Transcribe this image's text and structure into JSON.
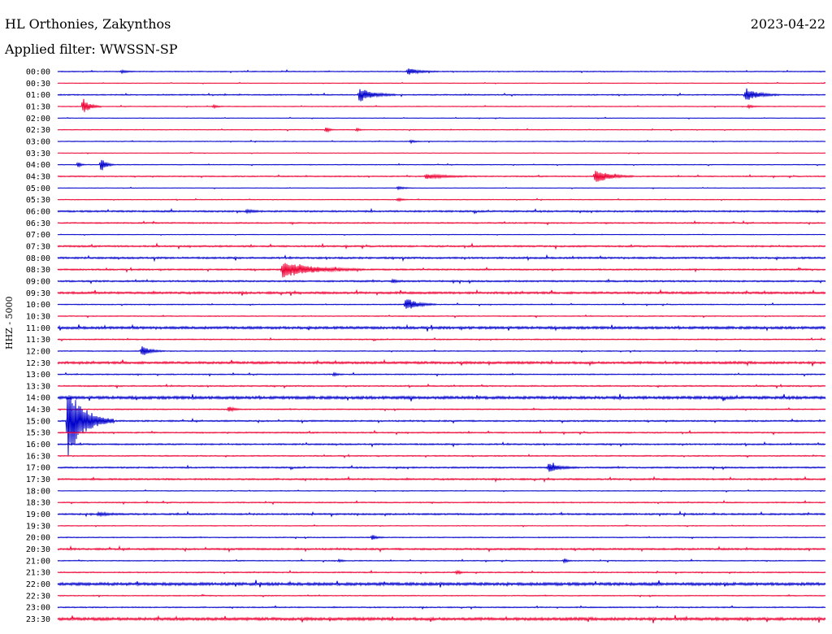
{
  "header": {
    "station": "HL Orthonies, Zakynthos",
    "date": "2023-04-22",
    "filter": "Applied filter: WWSSN-SP",
    "channel": "HHZ - 5000"
  },
  "chart_data": {
    "type": "line",
    "title": "HL Orthonies, Zakynthos",
    "subtitle": "Applied filter: WWSSN-SP",
    "ylabel": "HHZ - 5000",
    "xlabel": "",
    "colors": {
      "even": "#0000cc",
      "odd": "#ee0033"
    },
    "rows": [
      "00:00",
      "00:30",
      "01:00",
      "01:30",
      "02:00",
      "02:30",
      "03:00",
      "03:30",
      "04:00",
      "04:30",
      "05:00",
      "05:30",
      "06:00",
      "06:30",
      "07:00",
      "07:30",
      "08:00",
      "08:30",
      "09:00",
      "09:30",
      "10:00",
      "10:30",
      "11:00",
      "11:30",
      "12:00",
      "12:30",
      "13:00",
      "13:30",
      "14:00",
      "14:30",
      "15:00",
      "15:30",
      "16:00",
      "16:30",
      "17:00",
      "17:30",
      "18:00",
      "18:30",
      "19:00",
      "19:30",
      "20:00",
      "20:30",
      "21:00",
      "21:30",
      "22:00",
      "22:30",
      "23:00",
      "23:30"
    ],
    "row_minutes": 30,
    "noise": [
      0.5,
      0.3,
      0.6,
      0.4,
      0.3,
      0.4,
      0.4,
      0.3,
      0.4,
      0.6,
      0.3,
      0.4,
      0.9,
      0.7,
      0.3,
      0.9,
      1.0,
      0.8,
      0.9,
      1.2,
      0.5,
      0.5,
      1.4,
      0.6,
      0.5,
      1.3,
      0.6,
      0.7,
      1.6,
      0.6,
      0.8,
      0.7,
      0.8,
      0.6,
      0.8,
      0.9,
      0.4,
      0.6,
      0.9,
      0.4,
      0.5,
      1.0,
      0.5,
      0.6,
      1.6,
      0.5,
      0.6,
      1.6
    ],
    "events": [
      {
        "row": 0,
        "minute": 13.7,
        "amp": 4,
        "dur": 1.2
      },
      {
        "row": 0,
        "minute": 2.5,
        "amp": 2,
        "dur": 0.6
      },
      {
        "row": 2,
        "minute": 11.8,
        "amp": 9,
        "dur": 1.4
      },
      {
        "row": 2,
        "minute": 26.9,
        "amp": 8,
        "dur": 1.3
      },
      {
        "row": 3,
        "minute": 1.0,
        "amp": 10,
        "dur": 0.7
      },
      {
        "row": 3,
        "minute": 6.1,
        "amp": 2,
        "dur": 0.4
      },
      {
        "row": 3,
        "minute": 27.0,
        "amp": 2,
        "dur": 0.5
      },
      {
        "row": 5,
        "minute": 10.5,
        "amp": 4,
        "dur": 0.3
      },
      {
        "row": 5,
        "minute": 11.7,
        "amp": 2,
        "dur": 0.3
      },
      {
        "row": 6,
        "minute": 13.8,
        "amp": 2,
        "dur": 0.4
      },
      {
        "row": 8,
        "minute": 0.8,
        "amp": 3,
        "dur": 0.3
      },
      {
        "row": 8,
        "minute": 1.7,
        "amp": 10,
        "dur": 0.5
      },
      {
        "row": 9,
        "minute": 14.4,
        "amp": 3,
        "dur": 2.0
      },
      {
        "row": 9,
        "minute": 21.0,
        "amp": 9,
        "dur": 1.5
      },
      {
        "row": 10,
        "minute": 13.3,
        "amp": 2,
        "dur": 0.7
      },
      {
        "row": 11,
        "minute": 13.3,
        "amp": 2,
        "dur": 0.5
      },
      {
        "row": 12,
        "minute": 7.4,
        "amp": 2,
        "dur": 0.6
      },
      {
        "row": 17,
        "minute": 8.8,
        "amp": 10,
        "dur": 3.2
      },
      {
        "row": 18,
        "minute": 13.1,
        "amp": 2,
        "dur": 0.5
      },
      {
        "row": 20,
        "minute": 13.6,
        "amp": 9,
        "dur": 1.2
      },
      {
        "row": 24,
        "minute": 3.3,
        "amp": 7,
        "dur": 0.9
      },
      {
        "row": 26,
        "minute": 10.8,
        "amp": 2,
        "dur": 0.4
      },
      {
        "row": 29,
        "minute": 6.7,
        "amp": 4,
        "dur": 0.5
      },
      {
        "row": 30,
        "minute": 0.4,
        "amp": 48,
        "dur": 1.8
      },
      {
        "row": 34,
        "minute": 19.2,
        "amp": 6,
        "dur": 1.1
      },
      {
        "row": 38,
        "minute": 1.6,
        "amp": 2,
        "dur": 1.2
      },
      {
        "row": 40,
        "minute": 12.3,
        "amp": 3,
        "dur": 0.5
      },
      {
        "row": 42,
        "minute": 11.0,
        "amp": 2,
        "dur": 0.3
      },
      {
        "row": 42,
        "minute": 19.8,
        "amp": 3,
        "dur": 0.3
      },
      {
        "row": 43,
        "minute": 15.6,
        "amp": 2,
        "dur": 0.4
      }
    ]
  }
}
